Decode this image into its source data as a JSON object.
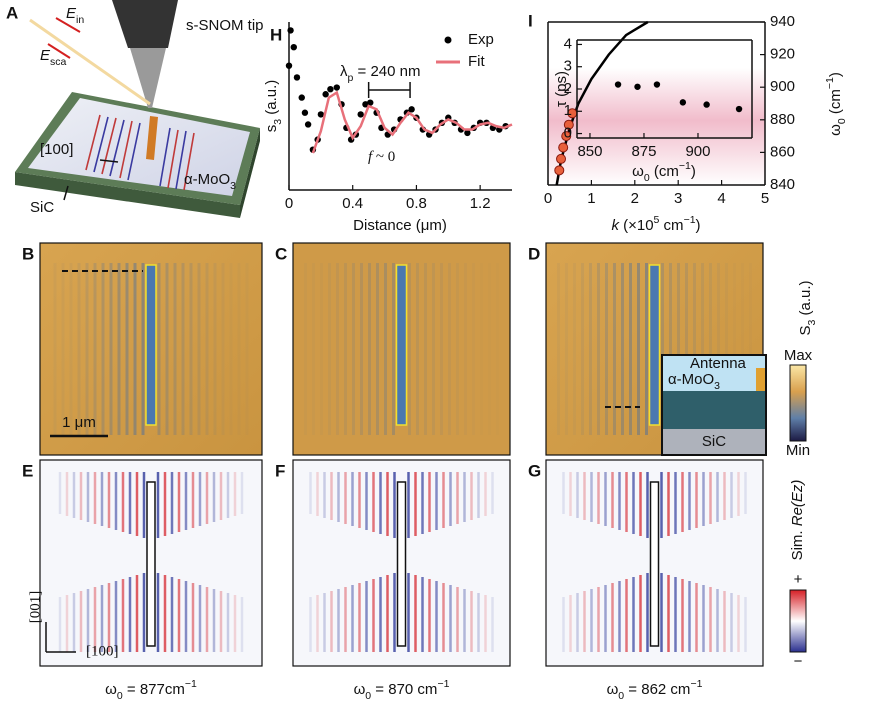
{
  "panels": {
    "A": {
      "letter": "A",
      "tip": "s-SNOM tip",
      "e_in": [
        {
          "text": "E",
          "style": "italic"
        },
        {
          "text": "in",
          "style": "sub"
        }
      ],
      "e_sca": [
        {
          "text": "E",
          "style": "italic"
        },
        {
          "text": "sca",
          "style": "sub"
        }
      ],
      "direction": "[100]",
      "film": [
        {
          "text": "α-MoO"
        },
        {
          "text": "3",
          "style": "sub"
        }
      ],
      "substrate": "SiC"
    },
    "B": {
      "letter": "B",
      "scale_bar": "1 μm"
    },
    "C": {
      "letter": "C"
    },
    "D": {
      "letter": "D",
      "inset": {
        "antenna": "Antenna",
        "film": [
          {
            "text": "α-MoO"
          },
          {
            "text": "3",
            "style": "sub"
          }
        ],
        "substrate": "SiC"
      }
    },
    "E": {
      "letter": "E",
      "axis_y": "[001]",
      "axis_x": "[100]",
      "caption": [
        {
          "text": "ω"
        },
        {
          "text": "0",
          "style": "sub"
        },
        {
          "text": " = 877cm"
        },
        {
          "text": "−1",
          "style": "sup"
        }
      ]
    },
    "F": {
      "letter": "F",
      "caption": [
        {
          "text": "ω"
        },
        {
          "text": "0",
          "style": "sub"
        },
        {
          "text": " = 870 cm"
        },
        {
          "text": "−1",
          "style": "sup"
        }
      ]
    },
    "G": {
      "letter": "G",
      "caption": [
        {
          "text": "ω"
        },
        {
          "text": "0",
          "style": "sub"
        },
        {
          "text": " = 862 cm"
        },
        {
          "text": "−1",
          "style": "sup"
        }
      ]
    }
  },
  "colorbars": [
    {
      "label": [
        {
          "text": "S"
        },
        {
          "text": "3",
          "style": "sub"
        },
        {
          "text": " (a.u.)"
        }
      ],
      "max": "Max",
      "min": "Min"
    },
    {
      "label": [
        {
          "text": "Sim. "
        },
        {
          "text": "Re(Ez)",
          "style": "italic"
        }
      ],
      "plus": "+",
      "minus": "−"
    }
  ],
  "chart_data": [
    {
      "type": "scatter",
      "letter": "H",
      "xlabel": [
        {
          "text": "Distance (μm)"
        }
      ],
      "ylabel": [
        {
          "text": "s"
        },
        {
          "text": "3",
          "style": "sub"
        },
        {
          "text": " (a.u.)"
        }
      ],
      "xlim": [
        0,
        1.4
      ],
      "xticks": [
        0,
        0.4,
        0.8,
        1.2
      ],
      "ylim": [
        0,
        1
      ],
      "spines": [
        "left",
        "bottom"
      ],
      "legend": "upper right",
      "annotations": [
        [
          {
            "text": "λ"
          },
          {
            "text": "p",
            "style": "sub"
          },
          {
            "text": " = 240 nm"
          }
        ],
        [
          {
            "text": "f",
            "style": "italic"
          },
          {
            "text": " ~ 0"
          }
        ]
      ],
      "series": [
        {
          "name": "Exp",
          "color": "#000000",
          "mark": "dot",
          "x": [
            0.0,
            0.01,
            0.03,
            0.05,
            0.08,
            0.1,
            0.12,
            0.15,
            0.18,
            0.2,
            0.23,
            0.26,
            0.3,
            0.33,
            0.36,
            0.39,
            0.42,
            0.45,
            0.48,
            0.51,
            0.55,
            0.58,
            0.62,
            0.66,
            0.7,
            0.74,
            0.77,
            0.8,
            0.84,
            0.88,
            0.92,
            0.96,
            1.0,
            1.04,
            1.08,
            1.12,
            1.16,
            1.2,
            1.24,
            1.28,
            1.32,
            1.36
          ],
          "values": [
            0.74,
            0.95,
            0.85,
            0.67,
            0.55,
            0.46,
            0.39,
            0.24,
            0.3,
            0.45,
            0.57,
            0.6,
            0.61,
            0.51,
            0.37,
            0.3,
            0.33,
            0.45,
            0.51,
            0.52,
            0.46,
            0.37,
            0.33,
            0.36,
            0.42,
            0.46,
            0.48,
            0.43,
            0.36,
            0.33,
            0.36,
            0.4,
            0.43,
            0.4,
            0.36,
            0.34,
            0.37,
            0.4,
            0.4,
            0.37,
            0.36,
            0.38
          ]
        },
        {
          "name": "Fit",
          "color": "#e8707a",
          "mark": "line",
          "x": [
            0.15,
            0.2,
            0.25,
            0.3,
            0.35,
            0.4,
            0.45,
            0.5,
            0.55,
            0.6,
            0.65,
            0.7,
            0.75,
            0.8,
            0.85,
            0.9,
            0.95,
            1.0,
            1.05,
            1.1,
            1.15,
            1.2,
            1.25,
            1.3,
            1.35,
            1.4
          ],
          "values": [
            0.22,
            0.35,
            0.55,
            0.58,
            0.42,
            0.31,
            0.38,
            0.5,
            0.48,
            0.37,
            0.33,
            0.4,
            0.46,
            0.43,
            0.36,
            0.34,
            0.39,
            0.42,
            0.4,
            0.36,
            0.36,
            0.39,
            0.4,
            0.38,
            0.37,
            0.39
          ]
        }
      ]
    },
    {
      "type": "line",
      "letter": "I",
      "xlabel": [
        {
          "text": "k",
          "style": "italic"
        },
        {
          "text": " (×10"
        },
        {
          "text": "5",
          "style": "sup"
        },
        {
          "text": " cm"
        },
        {
          "text": "−1",
          "style": "sup"
        },
        {
          "text": ")"
        }
      ],
      "y2label": [
        {
          "text": "ω"
        },
        {
          "text": "0",
          "style": "sub"
        },
        {
          "text": " (cm"
        },
        {
          "text": "−1",
          "style": "sup"
        },
        {
          "text": ")"
        }
      ],
      "xlim": [
        0,
        5
      ],
      "xticks": [
        0,
        1,
        2,
        3,
        4,
        5
      ],
      "y2lim": [
        840,
        940
      ],
      "y2ticks": [
        840,
        860,
        880,
        900,
        920,
        940
      ],
      "spines": [
        "left",
        "bottom",
        "top",
        "right"
      ],
      "series": [
        {
          "color": "#000000",
          "mark": "line",
          "axis": "y2",
          "x": [
            0.2,
            0.3,
            0.5,
            0.7,
            1.0,
            1.4,
            1.8,
            2.3
          ],
          "values": [
            840,
            855,
            875,
            890,
            905,
            920,
            932,
            940
          ]
        },
        {
          "color": "#e8603c",
          "mark": "dot",
          "axis": "y2",
          "x": [
            0.26,
            0.3,
            0.35,
            0.42,
            0.48,
            0.56
          ],
          "values": [
            849,
            856,
            863,
            870,
            877,
            884
          ]
        }
      ]
    },
    {
      "type": "scatter",
      "xlabel": [
        {
          "text": "ω"
        },
        {
          "text": "0",
          "style": "sub"
        },
        {
          "text": " (cm"
        },
        {
          "text": "−1",
          "style": "sup"
        },
        {
          "text": ")"
        }
      ],
      "ylabel": [
        {
          "text": "τ (ps)"
        }
      ],
      "xlim": [
        844,
        925
      ],
      "xticks": [
        850,
        875,
        900
      ],
      "ylim": [
        -0.2,
        4.2
      ],
      "yticks": [
        0,
        1,
        2,
        3,
        4
      ],
      "spines": [
        "left",
        "bottom",
        "top",
        "right"
      ],
      "series": [
        {
          "color": "#000000",
          "mark": "dot",
          "x": [
            863,
            872,
            881,
            893,
            904,
            919
          ],
          "values": [
            2.2,
            2.1,
            2.2,
            1.4,
            1.3,
            1.1
          ]
        }
      ]
    }
  ]
}
